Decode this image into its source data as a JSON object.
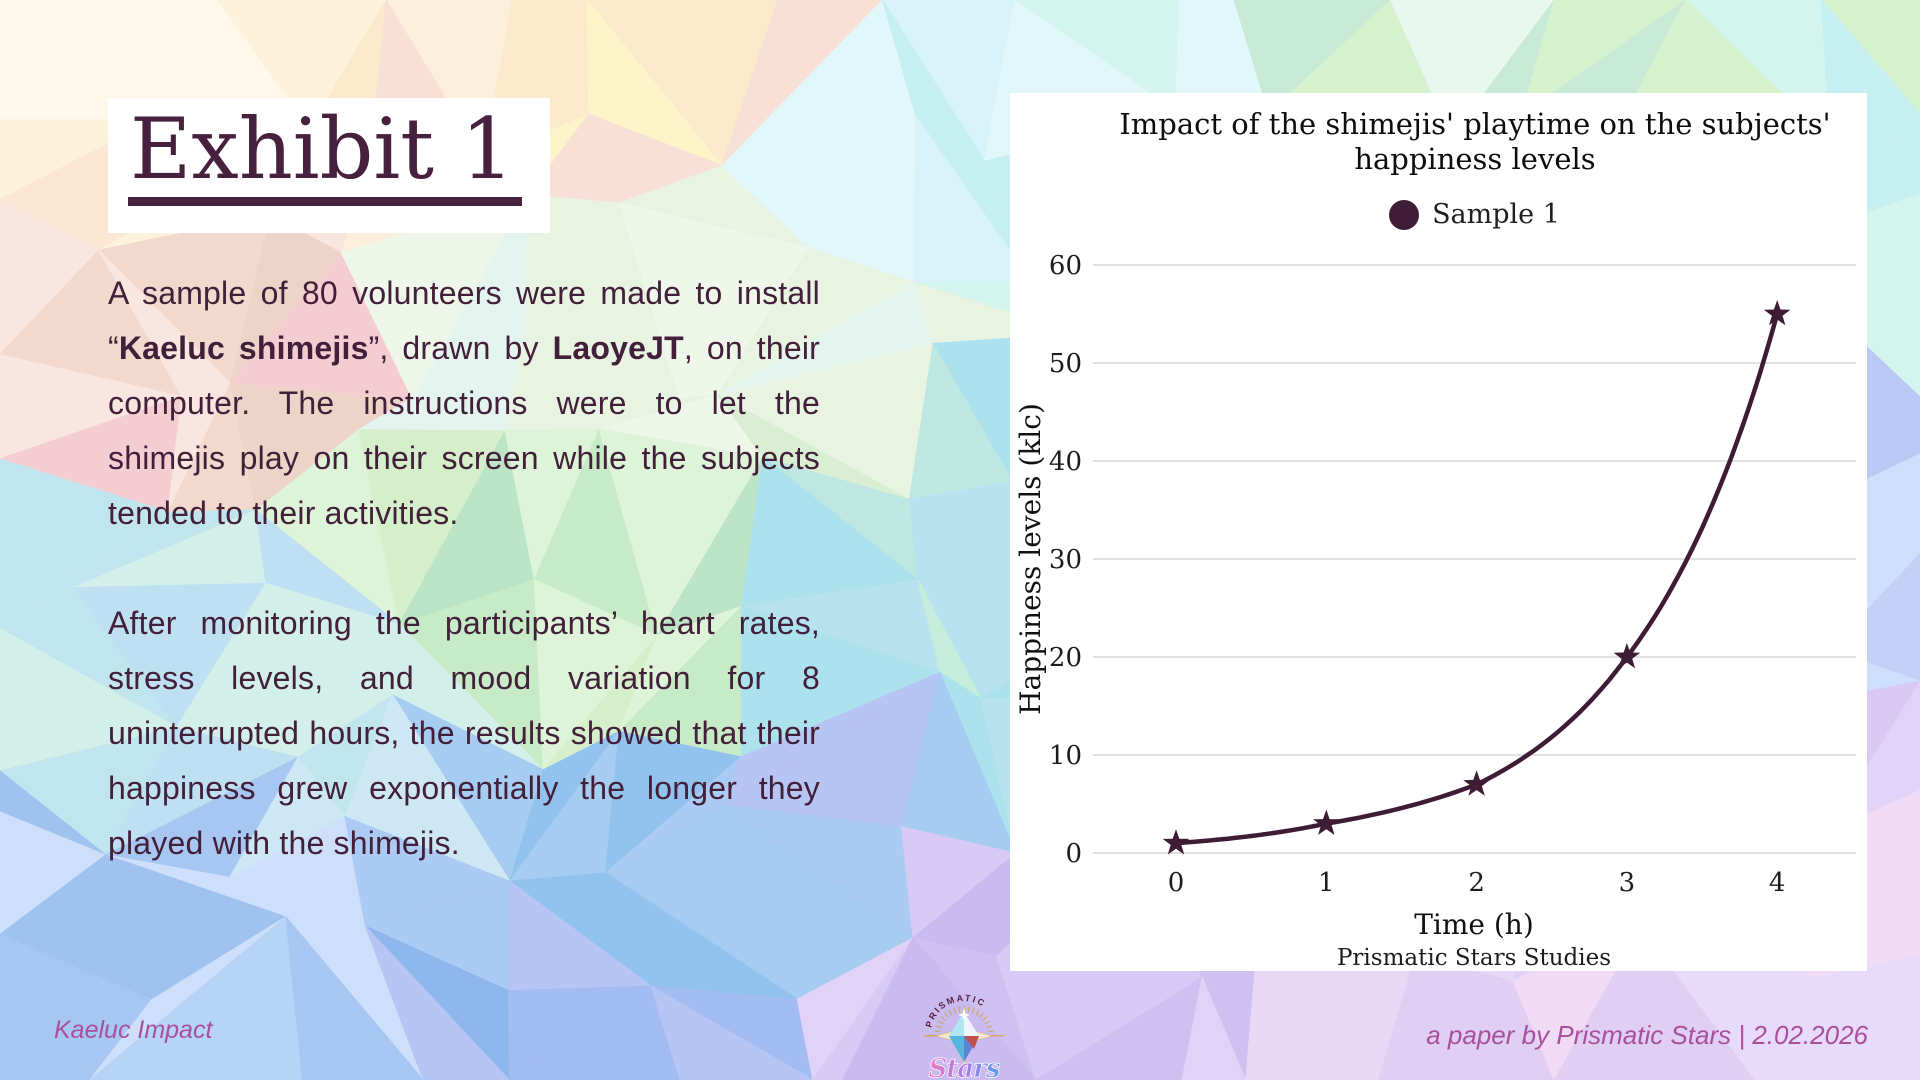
{
  "slide": {
    "title": "Exhibit 1",
    "footer_left": "Kaeluc Impact",
    "footer_right": "a paper by Prismatic Stars | 2.02.2026"
  },
  "logo": {
    "arc_text": "PRISMATIC",
    "script_text": "Stars"
  },
  "body": {
    "paragraphs": [
      [
        {
          "text": "A sample of 80 volunteers were made to install “"
        },
        {
          "text": "Kaeluc shimejis",
          "bold": true
        },
        {
          "text": "”, drawn by "
        },
        {
          "text": "LaoyeJT",
          "bold": true
        },
        {
          "text": ", on their computer. The instructions were to let the shimejis play on their screen while the subjects tended to their activities."
        }
      ],
      [
        {
          "text": "After monitoring the participants’ heart rates, stress levels, and mood variation for 8 uninterrupted hours, the results showed that their happiness grew exponentially the longer they played with the shimejis."
        }
      ]
    ]
  },
  "chart_data": {
    "type": "line",
    "title": "Impact of the shimejis' playtime on the subjects' happiness levels",
    "x": [
      0,
      1,
      2,
      3,
      4
    ],
    "series": [
      {
        "name": "Sample 1",
        "values": [
          1,
          3,
          7,
          20,
          55
        ]
      }
    ],
    "xlabel": "Time (h)",
    "ylabel": "Happiness levels (klc)",
    "caption": "Prismatic Stars Studies",
    "ylim": [
      0,
      60
    ],
    "yticks": [
      0,
      10,
      20,
      30,
      40,
      50,
      60
    ],
    "grid": "horizontal-only",
    "legend_position": "top-center",
    "marker": "star",
    "line_color": "#3f1c35"
  },
  "colors": {
    "body_ink": "#43203a",
    "title_ink": "#46203d",
    "chart_ink": "#111111",
    "series_line": "#3f1c35",
    "grid": "#d9d9d9",
    "footer_text": "#a8509c",
    "logo_gold": "#cfa552",
    "logo_maroon": "#5a2340",
    "panel_bg": "#ffffff"
  }
}
